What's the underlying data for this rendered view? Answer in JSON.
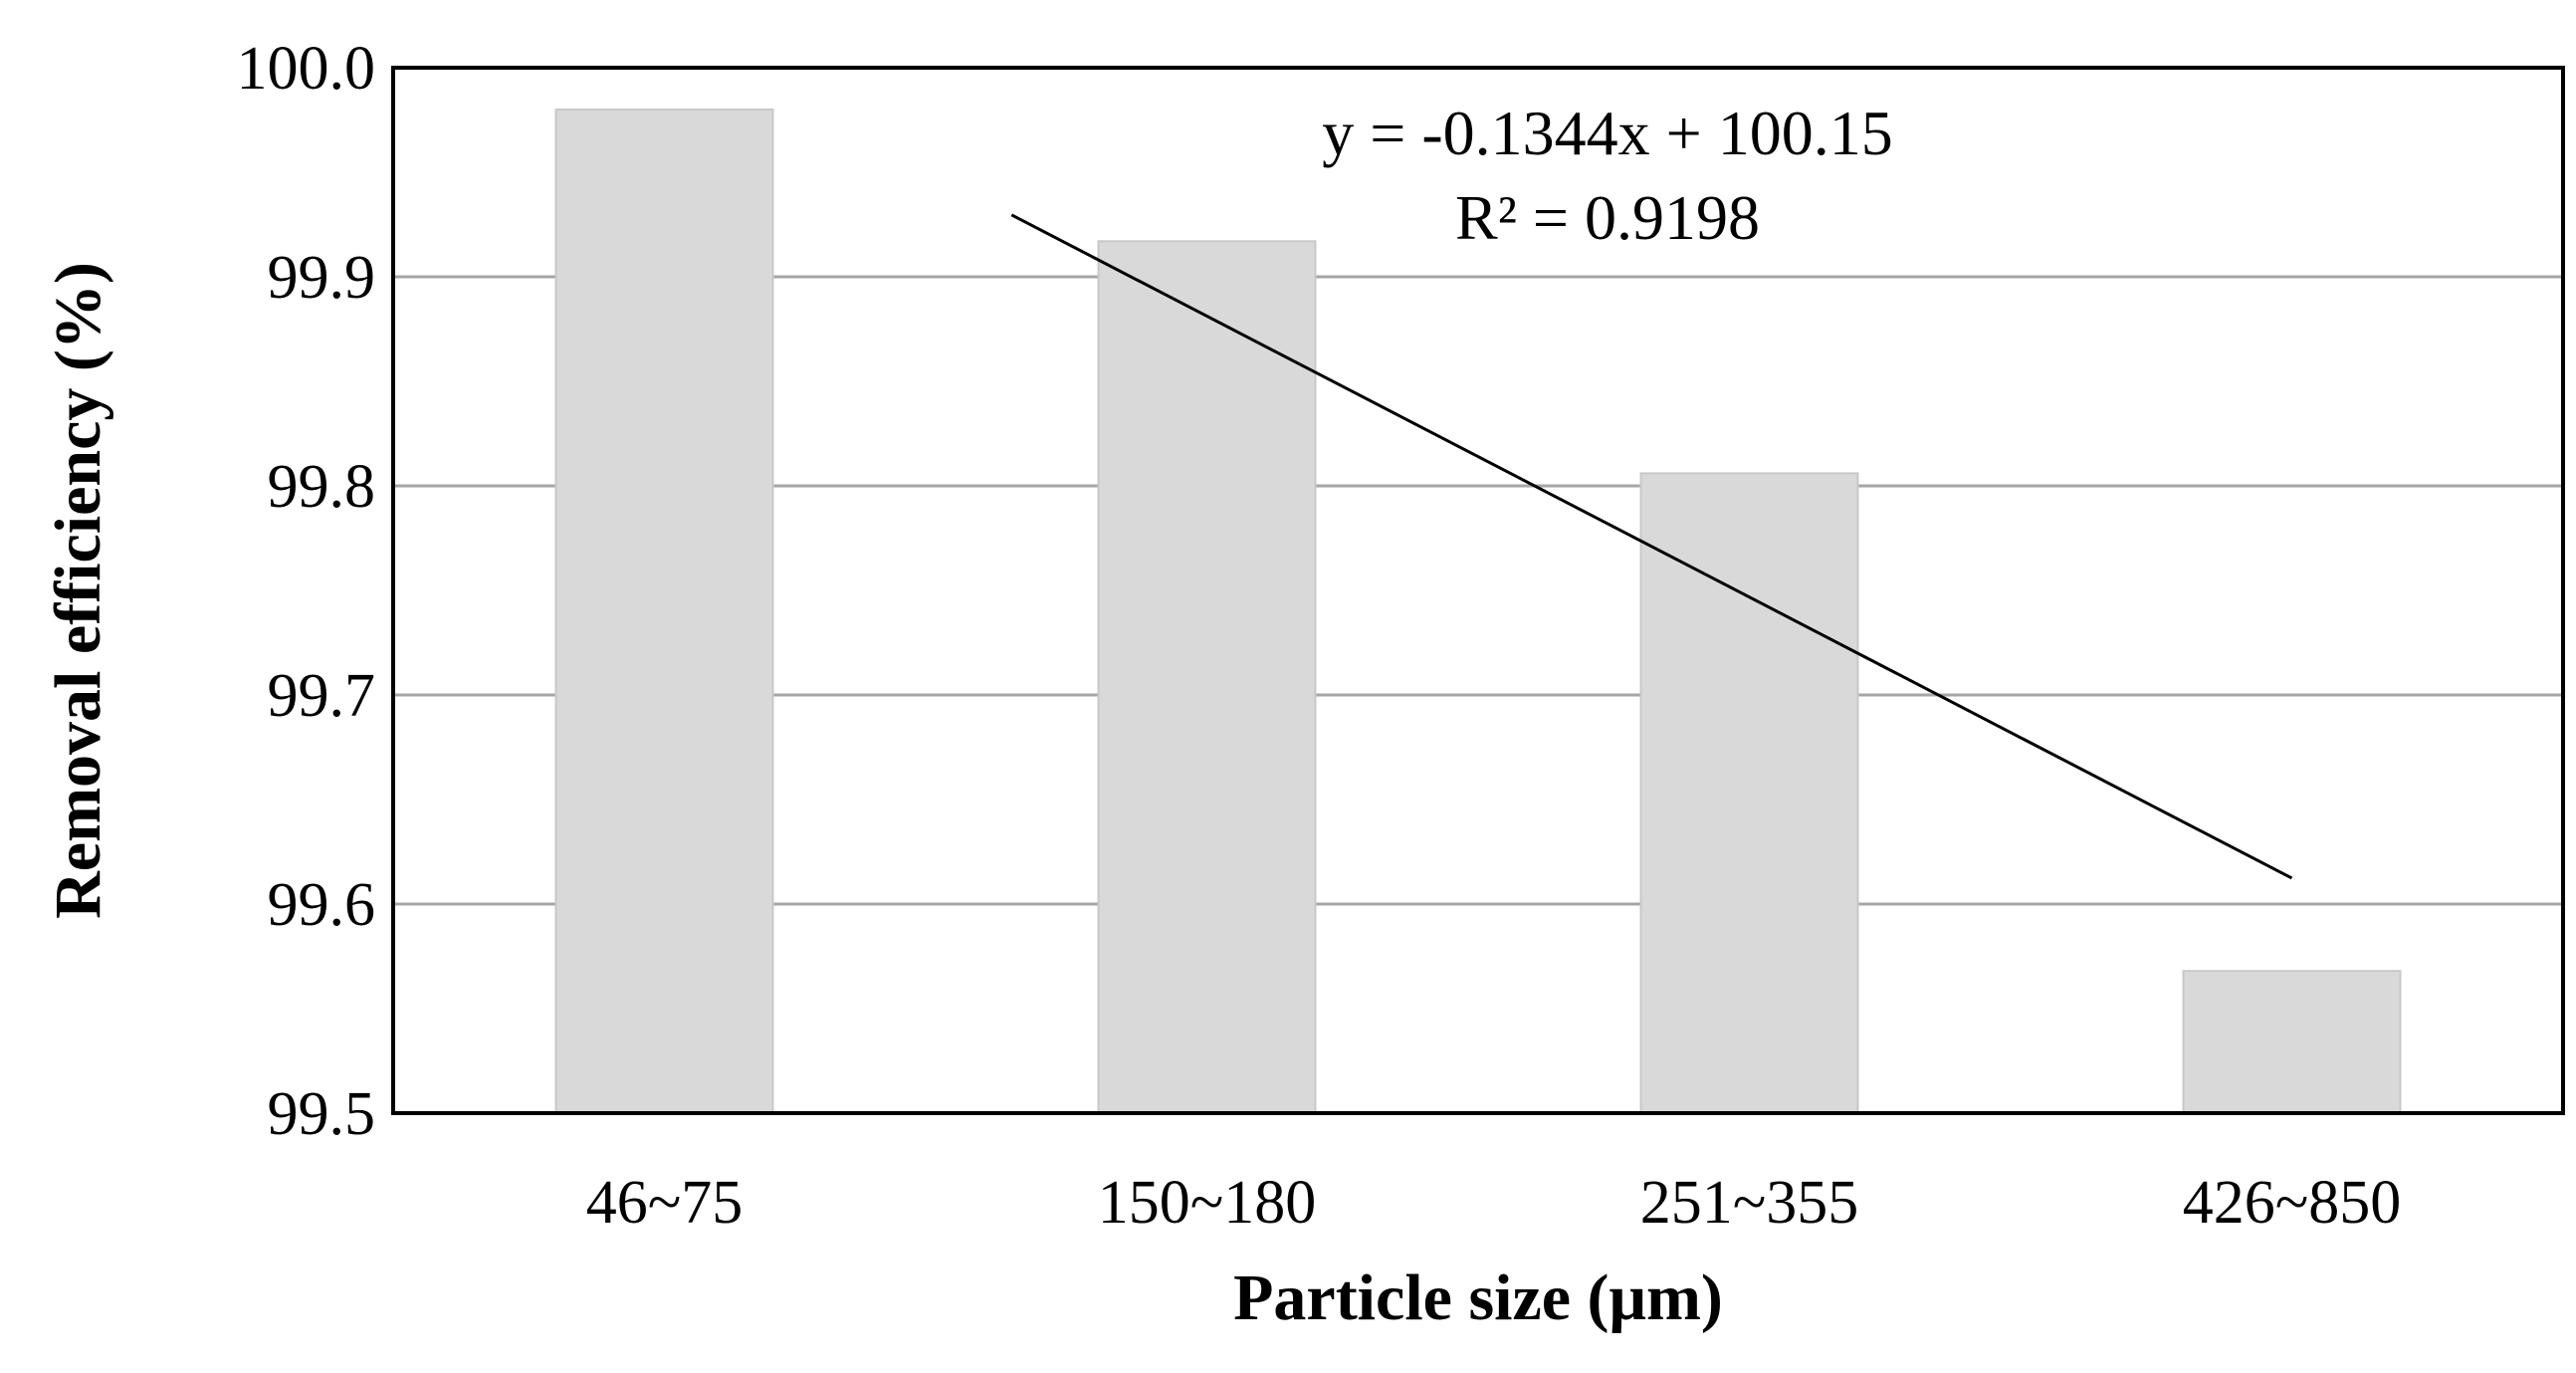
{
  "chart_data": {
    "type": "bar",
    "categories": [
      "46~75",
      "150~180",
      "251~355",
      "426~850"
    ],
    "values": [
      99.98,
      99.917,
      99.806,
      99.568
    ],
    "xlabel": "Particle size (μm)",
    "ylabel": "Removal efficiency (%)",
    "ylim": [
      99.5,
      100.0
    ],
    "yticks": [
      "99.5",
      "99.6",
      "99.7",
      "99.8",
      "99.9",
      "100.0"
    ],
    "grid": true,
    "legend": "none",
    "colors": {
      "bar": "#d9d9d9",
      "grid": "#a6a6a6",
      "frame": "#000000",
      "trendline": "#000000"
    },
    "trendline": {
      "type": "linear",
      "slope": -0.1344,
      "intercept": 100.15,
      "equation_label": "y = -0.1344x + 100.15",
      "r2_label": "R² = 0.9198"
    }
  }
}
